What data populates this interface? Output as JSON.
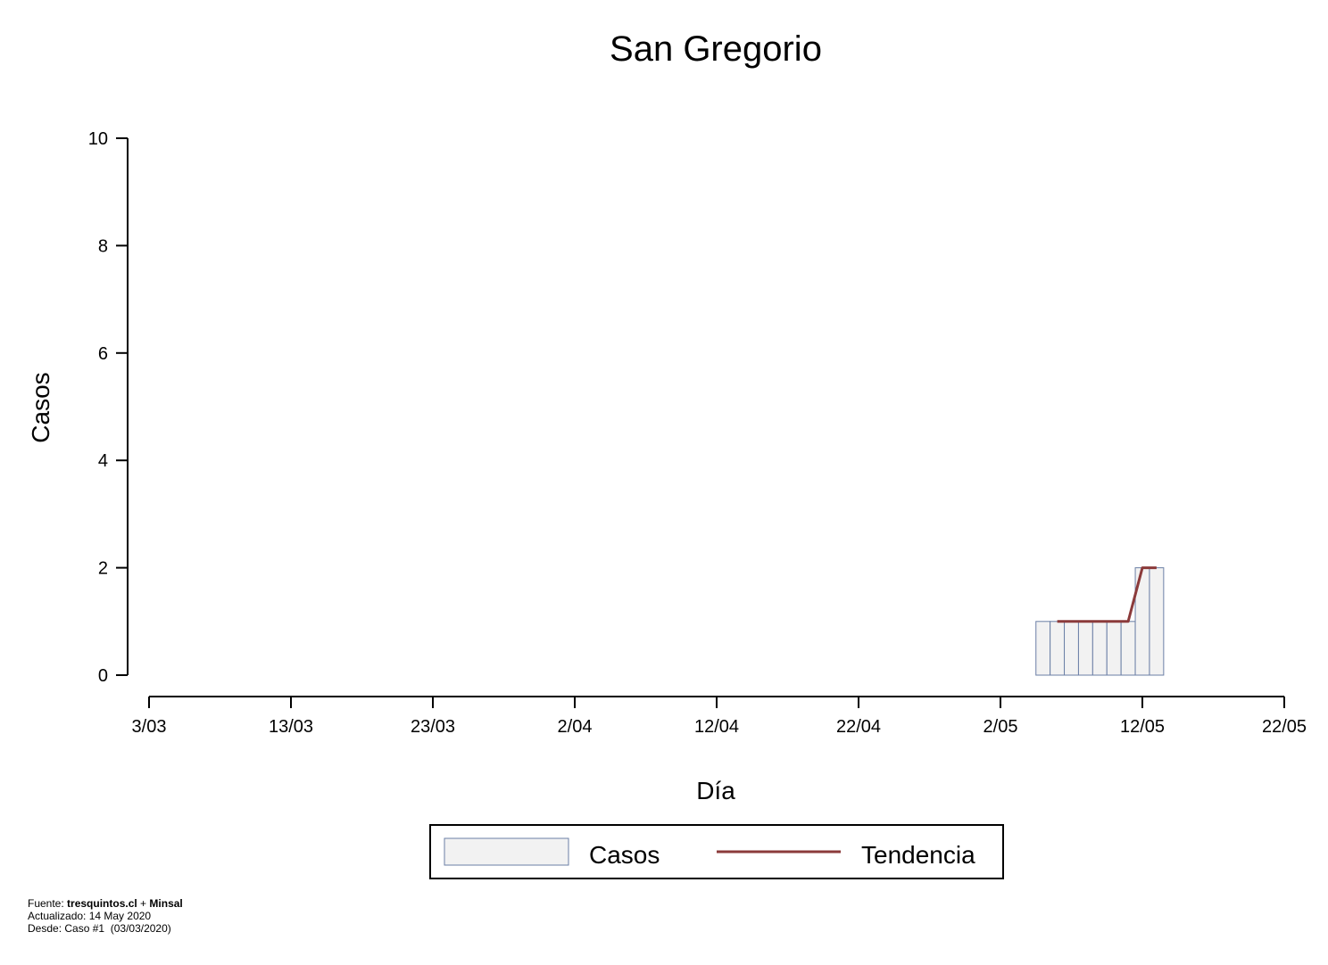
{
  "chart_data": {
    "type": "bar",
    "title": "San Gregorio",
    "xlabel": "Día",
    "ylabel": "Casos",
    "ylim": [
      0,
      10
    ],
    "yticks": [
      0,
      2,
      4,
      6,
      8,
      10
    ],
    "xlim": [
      "2020-03-03",
      "2020-05-22"
    ],
    "xticks": [
      {
        "date": "2020-03-03",
        "label": "3/03"
      },
      {
        "date": "2020-03-13",
        "label": "13/03"
      },
      {
        "date": "2020-03-23",
        "label": "23/03"
      },
      {
        "date": "2020-04-02",
        "label": "2/04"
      },
      {
        "date": "2020-04-12",
        "label": "12/04"
      },
      {
        "date": "2020-04-22",
        "label": "22/04"
      },
      {
        "date": "2020-05-02",
        "label": "2/05"
      },
      {
        "date": "2020-05-12",
        "label": "12/05"
      },
      {
        "date": "2020-05-22",
        "label": "22/05"
      }
    ],
    "series": [
      {
        "name": "Casos",
        "kind": "bar",
        "color": "#f2f2f2",
        "edge_color": "#6b7fa6",
        "x": [
          "2020-05-05",
          "2020-05-06",
          "2020-05-07",
          "2020-05-08",
          "2020-05-09",
          "2020-05-10",
          "2020-05-11",
          "2020-05-12",
          "2020-05-13"
        ],
        "values": [
          1,
          1,
          1,
          1,
          1,
          1,
          1,
          2,
          2
        ]
      },
      {
        "name": "Tendencia",
        "kind": "line",
        "color": "#8b3a3a",
        "x": [
          "2020-05-06",
          "2020-05-07",
          "2020-05-08",
          "2020-05-09",
          "2020-05-10",
          "2020-05-11",
          "2020-05-12",
          "2020-05-13"
        ],
        "values": [
          1,
          1,
          1,
          1,
          1,
          1,
          2,
          2
        ]
      }
    ],
    "legend": {
      "position": "bottom-center"
    },
    "grid": false
  },
  "footer": {
    "source_prefix": "Fuente: ",
    "source_site": "tresquintos.cl",
    "source_join": " + ",
    "source_org": "Minsal",
    "updated": "Actualizado: 14 May 2020",
    "since": "Desde: Caso #1  (03/03/2020)"
  }
}
